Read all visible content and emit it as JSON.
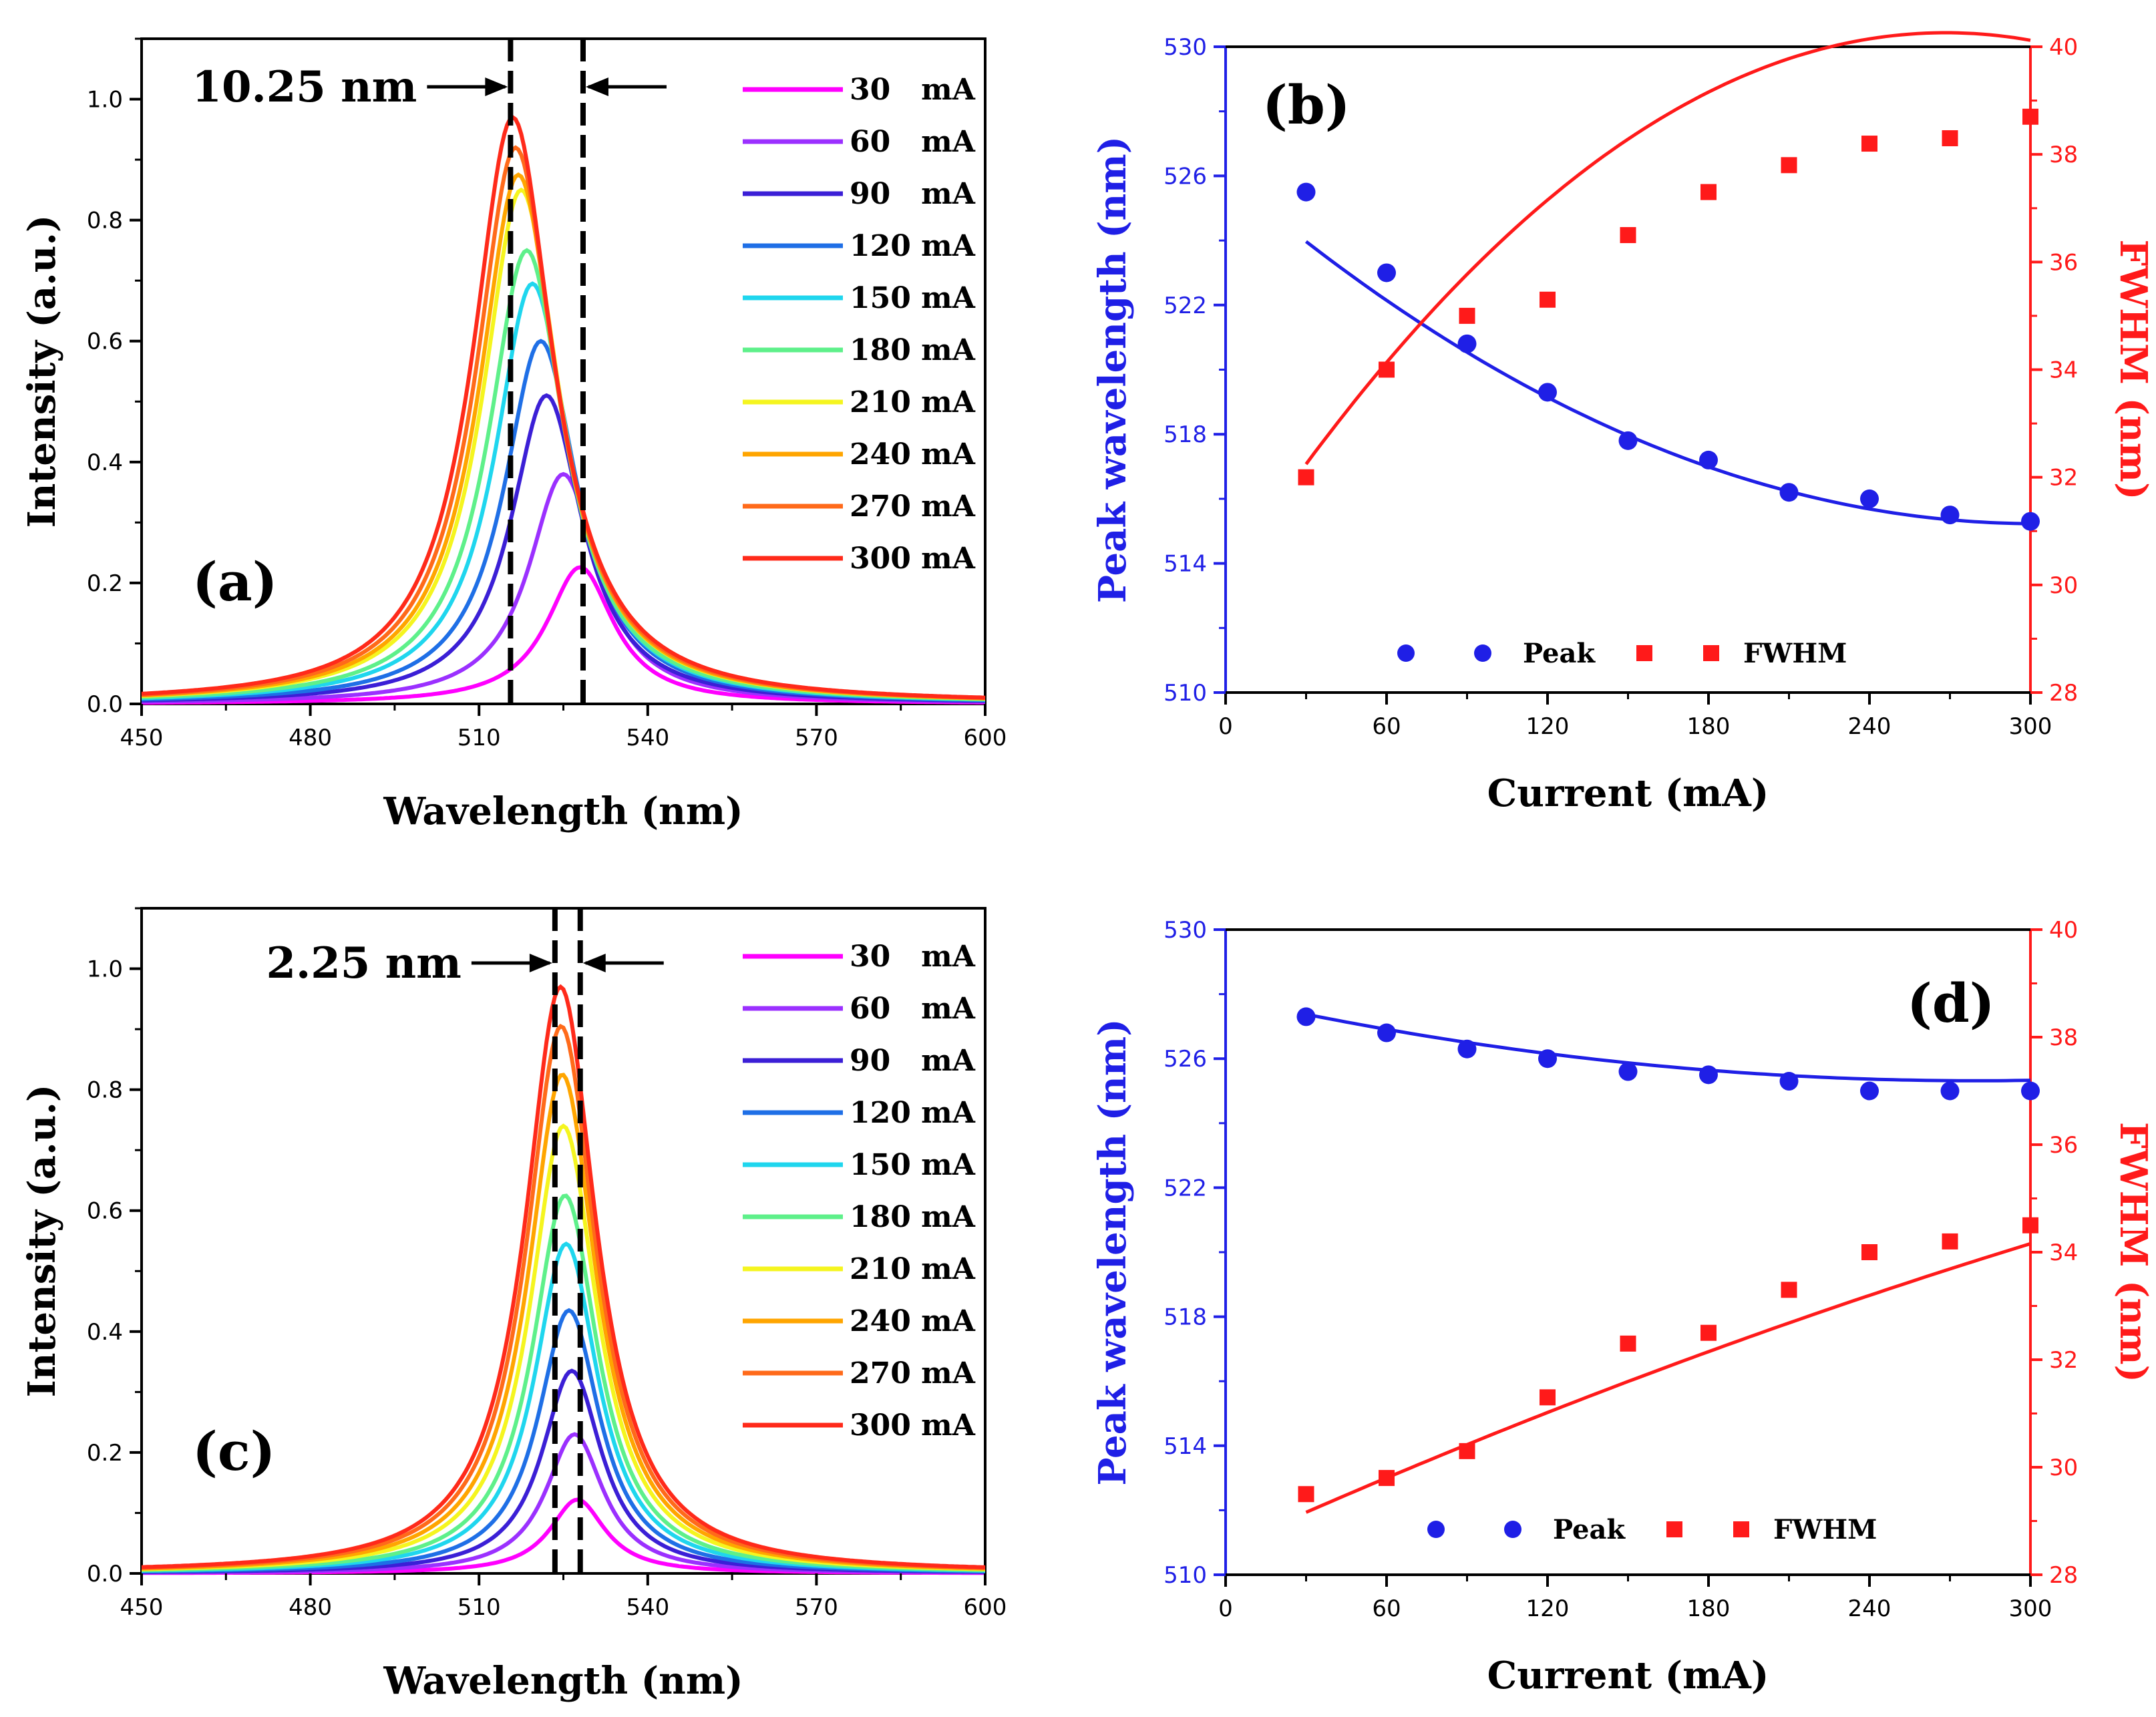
{
  "figure": {
    "colors": {
      "blue": "#1f1fe6",
      "red": "#ff1a1a",
      "axis": "#000000",
      "dash": "#000000"
    }
  },
  "chart_data": [
    {
      "panel": "a",
      "panel_label": "(a)",
      "type": "line",
      "xlabel": "Wavelength (nm)",
      "ylabel": "Intensity (a.u.)",
      "xlim": [
        450,
        600
      ],
      "ylim": [
        0,
        1.1
      ],
      "xticks": [
        450,
        480,
        510,
        540,
        570,
        600
      ],
      "yticks": [
        0.0,
        0.2,
        0.4,
        0.6,
        0.8,
        1.0
      ],
      "xtick_labels": [
        "450",
        "480",
        "510",
        "540",
        "570",
        "600"
      ],
      "ytick_labels": [
        "0.0",
        "0.2",
        "0.4",
        "0.6",
        "0.8",
        "1.0"
      ],
      "annotation": {
        "text": "10.25 nm",
        "x_left": 515.6,
        "x_right": 528.5
      },
      "series": [
        {
          "name": "30   mA",
          "color": "#ff00ff",
          "peak": 528.0,
          "amplitude": 0.226,
          "width": 14.5
        },
        {
          "name": "60   mA",
          "color": "#9b30ff",
          "peak": 525.0,
          "amplitude": 0.38,
          "width": 15.0
        },
        {
          "name": "90   mA",
          "color": "#3b1fd6",
          "peak": 522.0,
          "amplitude": 0.51,
          "width": 15.5
        },
        {
          "name": "120 mA",
          "color": "#1f6fe6",
          "peak": 521.0,
          "amplitude": 0.6,
          "width": 16.0
        },
        {
          "name": "150 mA",
          "color": "#1fd6ee",
          "peak": 519.5,
          "amplitude": 0.695,
          "width": 16.3
        },
        {
          "name": "180 mA",
          "color": "#5ef08a",
          "peak": 518.5,
          "amplitude": 0.75,
          "width": 16.6
        },
        {
          "name": "210 mA",
          "color": "#f5f51f",
          "peak": 517.5,
          "amplitude": 0.85,
          "width": 16.9
        },
        {
          "name": "240 mA",
          "color": "#ffa500",
          "peak": 517.0,
          "amplitude": 0.875,
          "width": 17.1
        },
        {
          "name": "270 mA",
          "color": "#ff6a1a",
          "peak": 516.5,
          "amplitude": 0.92,
          "width": 17.3
        },
        {
          "name": "300 mA",
          "color": "#ff2a1a",
          "peak": 516.0,
          "amplitude": 0.97,
          "width": 17.5
        }
      ]
    },
    {
      "panel": "b",
      "panel_label": "(b)",
      "type": "scatter",
      "xlabel": "Current (mA)",
      "ylabel_left": "Peak wavelength (nm)",
      "ylabel_right": "FWHM (nm)",
      "xlim": [
        0,
        300
      ],
      "ylim_left": [
        510,
        530
      ],
      "ylim_right": [
        28,
        40
      ],
      "xticks": [
        0,
        60,
        120,
        180,
        240,
        300
      ],
      "yticks_left": [
        510,
        514,
        518,
        522,
        526,
        530
      ],
      "yticks_right": [
        28,
        30,
        32,
        34,
        36,
        38,
        40
      ],
      "xtick_labels": [
        "0",
        "60",
        "120",
        "180",
        "240",
        "300"
      ],
      "ytick_labels_left": [
        "510",
        "514",
        "518",
        "522",
        "526",
        "530"
      ],
      "ytick_labels_right": [
        "28",
        "30",
        "32",
        "34",
        "36",
        "38",
        "40"
      ],
      "legend": {
        "peak": "Peak",
        "fwhm": "FWHM"
      },
      "x": [
        30,
        60,
        90,
        120,
        150,
        180,
        210,
        240,
        270,
        300
      ],
      "peak": [
        525.5,
        523.0,
        520.8,
        519.3,
        517.8,
        517.2,
        516.2,
        516.0,
        515.5,
        515.3
      ],
      "fwhm": [
        32.0,
        34.0,
        35.0,
        35.3,
        36.5,
        37.3,
        37.8,
        38.2,
        38.3,
        38.7
      ],
      "peak_fit": [
        526.0,
        -0.0713,
        0.000118
      ],
      "fwhm_fit": [
        30.1,
        0.0757,
        -0.000141
      ]
    },
    {
      "panel": "c",
      "panel_label": "(c)",
      "type": "line",
      "xlabel": "Wavelength (nm)",
      "ylabel": "Intensity (a.u.)",
      "xlim": [
        450,
        600
      ],
      "ylim": [
        0,
        1.1
      ],
      "xticks": [
        450,
        480,
        510,
        540,
        570,
        600
      ],
      "yticks": [
        0.0,
        0.2,
        0.4,
        0.6,
        0.8,
        1.0
      ],
      "xtick_labels": [
        "450",
        "480",
        "510",
        "540",
        "570",
        "600"
      ],
      "ytick_labels": [
        "0.0",
        "0.2",
        "0.4",
        "0.6",
        "0.8",
        "1.0"
      ],
      "annotation": {
        "text": "2.25 nm",
        "x_left": 523.5,
        "x_right": 528.0
      },
      "series": [
        {
          "name": "30   mA",
          "color": "#ff00ff",
          "peak": 527.5,
          "amplitude": 0.122,
          "width": 12.0
        },
        {
          "name": "60   mA",
          "color": "#9b30ff",
          "peak": 527.0,
          "amplitude": 0.23,
          "width": 12.5
        },
        {
          "name": "90   mA",
          "color": "#3b1fd6",
          "peak": 526.5,
          "amplitude": 0.335,
          "width": 13.0
        },
        {
          "name": "120 mA",
          "color": "#1f6fe6",
          "peak": 526.0,
          "amplitude": 0.435,
          "width": 13.4
        },
        {
          "name": "150 mA",
          "color": "#1fd6ee",
          "peak": 525.5,
          "amplitude": 0.545,
          "width": 13.8
        },
        {
          "name": "180 mA",
          "color": "#5ef08a",
          "peak": 525.3,
          "amplitude": 0.625,
          "width": 14.2
        },
        {
          "name": "210 mA",
          "color": "#f5f51f",
          "peak": 525.0,
          "amplitude": 0.74,
          "width": 14.6
        },
        {
          "name": "240 mA",
          "color": "#ffa500",
          "peak": 524.8,
          "amplitude": 0.825,
          "width": 14.9
        },
        {
          "name": "270 mA",
          "color": "#ff6a1a",
          "peak": 524.6,
          "amplitude": 0.905,
          "width": 15.2
        },
        {
          "name": "300 mA",
          "color": "#ff2a1a",
          "peak": 524.5,
          "amplitude": 0.97,
          "width": 15.5
        }
      ]
    },
    {
      "panel": "d",
      "panel_label": "(d)",
      "type": "scatter",
      "xlabel": "Current (mA)",
      "ylabel_left": "Peak wavelength (nm)",
      "ylabel_right": "FWHM (nm)",
      "xlim": [
        0,
        300
      ],
      "ylim_left": [
        510,
        530
      ],
      "ylim_right": [
        28,
        40
      ],
      "xticks": [
        0,
        60,
        120,
        180,
        240,
        300
      ],
      "yticks_left": [
        510,
        514,
        518,
        522,
        526,
        530
      ],
      "yticks_right": [
        28,
        30,
        32,
        34,
        36,
        38,
        40
      ],
      "xtick_labels": [
        "0",
        "60",
        "120",
        "180",
        "240",
        "300"
      ],
      "ytick_labels_left": [
        "510",
        "514",
        "518",
        "522",
        "526",
        "530"
      ],
      "ytick_labels_right": [
        "28",
        "30",
        "32",
        "34",
        "36",
        "38",
        "40"
      ],
      "legend": {
        "peak": "Peak",
        "fwhm": "FWHM"
      },
      "x": [
        30,
        60,
        90,
        120,
        150,
        180,
        210,
        240,
        270,
        300
      ],
      "peak": [
        527.3,
        526.8,
        526.3,
        526.0,
        525.6,
        525.5,
        525.3,
        525.0,
        525.0,
        525.0
      ],
      "fwhm": [
        29.5,
        29.8,
        30.3,
        31.3,
        32.3,
        32.5,
        33.3,
        34.0,
        34.2,
        34.5
      ],
      "peak_fit": [
        527.9,
        -0.0185,
        3.31e-05
      ],
      "fwhm_fit": [
        28.5,
        0.0224,
        -1.18e-05
      ]
    }
  ]
}
